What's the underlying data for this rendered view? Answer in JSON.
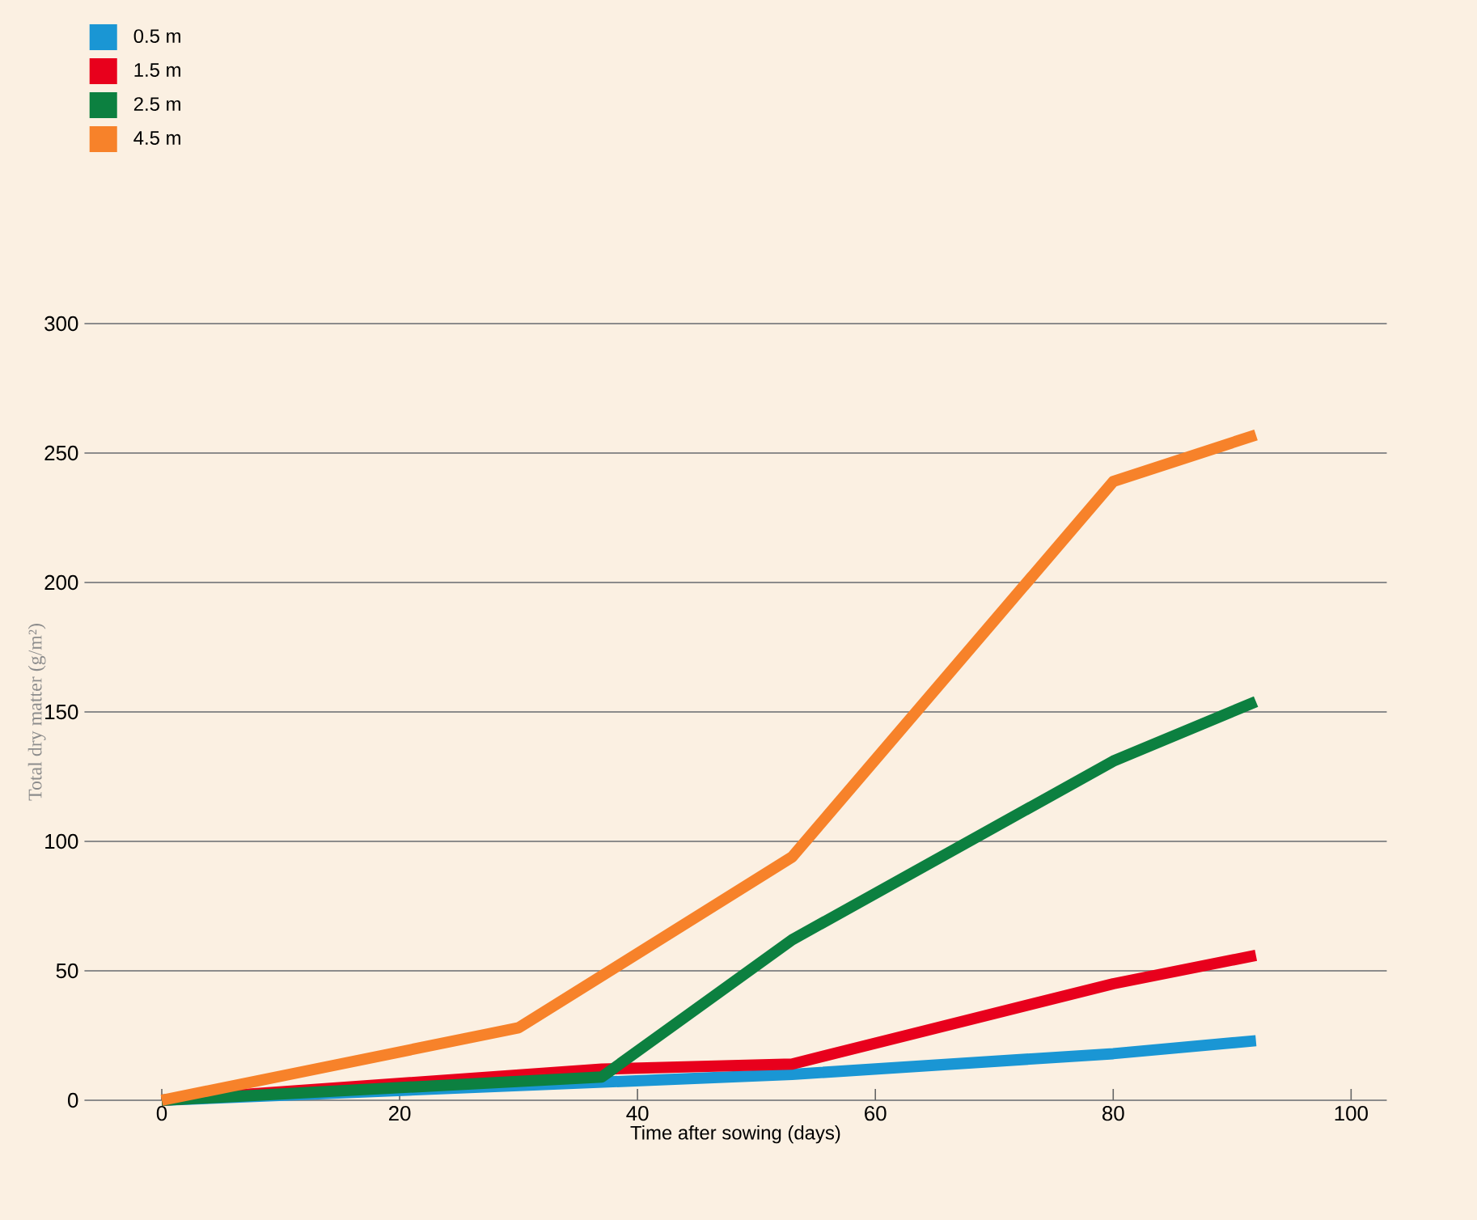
{
  "chart_data": {
    "type": "line",
    "xlabel": "Time after sowing (days)",
    "ylabel": "Total dry matter (g/m²)",
    "xlim": [
      -6.5,
      103
    ],
    "ylim": [
      0,
      300
    ],
    "xticks": [
      0,
      20,
      40,
      60,
      80,
      100
    ],
    "yticks": [
      0,
      50,
      100,
      150,
      200,
      250,
      300
    ],
    "grid": "y",
    "legend": "top left",
    "series": [
      {
        "name": "0.5 m",
        "color": "#1a96d4",
        "x": [
          0,
          53,
          80,
          92
        ],
        "values": [
          0,
          10,
          18,
          23
        ]
      },
      {
        "name": "1.5 m",
        "color": "#e8001c",
        "x": [
          0,
          37,
          53,
          80,
          92
        ],
        "values": [
          0,
          12,
          14,
          45,
          56
        ]
      },
      {
        "name": "2.5 m",
        "color": "#0c8040",
        "x": [
          0,
          37,
          53,
          80,
          92
        ],
        "values": [
          0,
          9,
          62,
          131,
          154
        ]
      },
      {
        "name": "4.5 m",
        "color": "#f7822a",
        "x": [
          0,
          30,
          53,
          80,
          92
        ],
        "values": [
          0,
          28,
          94,
          239,
          257
        ]
      }
    ]
  }
}
